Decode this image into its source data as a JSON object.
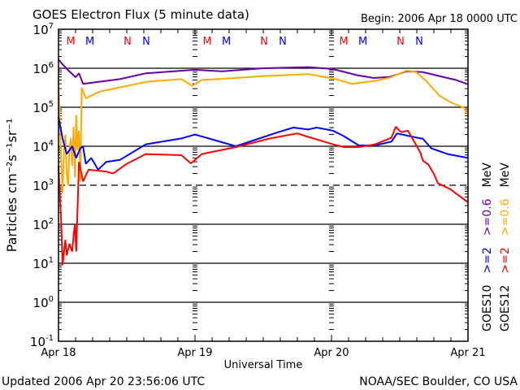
{
  "chart_data": {
    "type": "line",
    "title": "GOES Electron Flux (5 minute data)",
    "begin_label": "Begin: 2006 Apr 18 0000 UTC",
    "xlabel": "Universal Time",
    "ylabel": "Particles cm⁻²s⁻¹sr⁻¹",
    "x_unit": "days since 2006 Apr 18 00:00 UTC",
    "xlim": [
      0,
      3
    ],
    "x_ticks": [
      {
        "value": 0,
        "label": "Apr 18"
      },
      {
        "value": 1,
        "label": "Apr 19"
      },
      {
        "value": 2,
        "label": "Apr 20"
      },
      {
        "value": 3,
        "label": "Apr 21"
      }
    ],
    "y_scale": "log",
    "ylim_log10": [
      -1,
      7
    ],
    "y_ticks": [
      {
        "exp": 7,
        "base": "10",
        "sup": "7"
      },
      {
        "exp": 6,
        "base": "10",
        "sup": "6"
      },
      {
        "exp": 5,
        "base": "10",
        "sup": "5"
      },
      {
        "exp": 4,
        "base": "10",
        "sup": "4"
      },
      {
        "exp": 3,
        "base": "10",
        "sup": "3"
      },
      {
        "exp": 2,
        "base": "10",
        "sup": "2"
      },
      {
        "exp": 1,
        "base": "10",
        "sup": "1"
      },
      {
        "exp": 0,
        "base": "10",
        "sup": "0"
      },
      {
        "exp": -1,
        "base": "10",
        "sup": "-1"
      }
    ],
    "gridlines_log10": [
      {
        "exp": 6,
        "style": "solid"
      },
      {
        "exp": 5,
        "style": "solid"
      },
      {
        "exp": 4,
        "style": "solid"
      },
      {
        "exp": 3,
        "style": "dashed"
      },
      {
        "exp": 2,
        "style": "solid"
      },
      {
        "exp": 1,
        "style": "solid"
      },
      {
        "exp": 0,
        "style": "solid"
      }
    ],
    "markers": [
      {
        "label": "M",
        "day": 0.09,
        "color": "#ff0000"
      },
      {
        "label": "M",
        "day": 0.23,
        "color": "#0000ff"
      },
      {
        "label": "N",
        "day": 0.506,
        "color": "#ff0000"
      },
      {
        "label": "N",
        "day": 0.643,
        "color": "#0000ff"
      },
      {
        "label": "M",
        "day": 1.09,
        "color": "#ff0000"
      },
      {
        "label": "M",
        "day": 1.23,
        "color": "#0000ff"
      },
      {
        "label": "N",
        "day": 1.506,
        "color": "#ff0000"
      },
      {
        "label": "N",
        "day": 1.643,
        "color": "#0000ff"
      },
      {
        "label": "M",
        "day": 2.09,
        "color": "#ff0000"
      },
      {
        "label": "M",
        "day": 2.23,
        "color": "#0000ff"
      },
      {
        "label": "N",
        "day": 2.506,
        "color": "#ff0000"
      },
      {
        "label": "N",
        "day": 2.643,
        "color": "#0000ff"
      }
    ],
    "series": [
      {
        "name": "GOES10 >=0.6 MeV",
        "color": "#6600aa",
        "x": [
          0,
          0.03,
          0.07,
          0.125,
          0.15,
          0.18,
          0.29,
          0.45,
          0.64,
          1.0,
          1.2,
          1.5,
          1.83,
          2.01,
          2.19,
          2.31,
          2.43,
          2.55,
          2.67,
          2.79,
          2.91,
          3.0
        ],
        "log10": [
          6.23,
          6.1,
          5.95,
          5.77,
          5.87,
          5.6,
          5.65,
          5.72,
          5.87,
          5.96,
          5.92,
          6.0,
          6.03,
          5.98,
          5.82,
          5.75,
          5.78,
          5.92,
          5.9,
          5.8,
          5.7,
          5.59
        ]
      },
      {
        "name": "GOES12 >=0.6 MeV",
        "color": "#ffaa00",
        "x": [
          0,
          0.01,
          0.02,
          0.03,
          0.04,
          0.05,
          0.06,
          0.07,
          0.08,
          0.09,
          0.1,
          0.11,
          0.12,
          0.13,
          0.14,
          0.15,
          0.16,
          0.17,
          0.2,
          0.3,
          0.64,
          0.9,
          0.98,
          1.05,
          1.3,
          1.5,
          1.83,
          2.01,
          2.15,
          2.31,
          2.43,
          2.55,
          2.62,
          2.7,
          2.79,
          2.87,
          2.97,
          3.0
        ],
        "log10": [
          5.73,
          4.6,
          3.6,
          2.8,
          3.9,
          4.3,
          3.3,
          3.0,
          3.9,
          4.2,
          3.5,
          4.5,
          3.2,
          4.8,
          3.9,
          4.4,
          3.1,
          5.5,
          5.23,
          5.4,
          5.65,
          5.72,
          5.55,
          5.7,
          5.75,
          5.8,
          5.85,
          5.74,
          5.6,
          5.67,
          5.76,
          5.94,
          5.9,
          5.65,
          5.3,
          5.13,
          4.99,
          4.78
        ]
      },
      {
        "name": "GOES10 >=2 MeV",
        "color": "#0000ff",
        "x": [
          0,
          0.03,
          0.06,
          0.1,
          0.13,
          0.16,
          0.18,
          0.2,
          0.24,
          0.29,
          0.35,
          0.45,
          0.64,
          0.9,
          1.0,
          1.3,
          1.6,
          1.72,
          1.83,
          1.89,
          2.01,
          2.09,
          2.2,
          2.32,
          2.44,
          2.48,
          2.57,
          2.67,
          2.73,
          2.85,
          3.0
        ],
        "log10": [
          4.75,
          4.2,
          3.8,
          4.0,
          3.7,
          3.95,
          4.0,
          3.55,
          3.7,
          3.4,
          3.6,
          3.65,
          4.05,
          4.2,
          4.3,
          4.0,
          4.35,
          4.48,
          4.43,
          4.48,
          4.4,
          4.26,
          4.02,
          4.02,
          4.12,
          4.33,
          4.26,
          4.19,
          3.95,
          3.8,
          3.7
        ]
      },
      {
        "name": "GOES12 >=2 MeV",
        "color": "#ff0000",
        "x": [
          0,
          0.02,
          0.03,
          0.05,
          0.06,
          0.08,
          0.1,
          0.11,
          0.12,
          0.13,
          0.15,
          0.18,
          0.22,
          0.35,
          0.4,
          0.5,
          0.64,
          0.9,
          0.97,
          1.05,
          1.3,
          1.55,
          1.75,
          1.83,
          2.01,
          2.09,
          2.2,
          2.32,
          2.44,
          2.47,
          2.51,
          2.56,
          2.62,
          2.65,
          2.67,
          2.71,
          2.75,
          2.78,
          2.87,
          3.0
        ],
        "log10": [
          3.5,
          2.0,
          0.95,
          1.6,
          1.2,
          1.5,
          1.3,
          1.7,
          2.0,
          1.3,
          3.6,
          3.1,
          3.4,
          3.35,
          3.3,
          3.55,
          3.8,
          3.77,
          3.56,
          3.8,
          3.98,
          4.2,
          4.33,
          4.24,
          4.05,
          3.98,
          3.98,
          4.05,
          4.22,
          4.5,
          4.36,
          4.4,
          4.03,
          3.84,
          3.63,
          3.53,
          3.29,
          3.05,
          2.9,
          2.56
        ]
      }
    ],
    "legend": {
      "placement": "right",
      "columns": [
        {
          "satellite": "GOES10",
          "items": [
            {
              "text": ">=2",
              "color": "#0000ff"
            },
            {
              "text": ">=0.6",
              "color": "#6600aa"
            }
          ],
          "unit": "MeV"
        },
        {
          "satellite": "GOES12",
          "items": [
            {
              "text": ">=2",
              "color": "#ff0000"
            },
            {
              "text": ">=0.6",
              "color": "#ffaa00"
            }
          ],
          "unit": "MeV"
        }
      ]
    }
  },
  "footer": {
    "updated": "Updated 2006 Apr 20 23:56:06 UTC",
    "credit": "NOAA/SEC Boulder, CO USA"
  }
}
